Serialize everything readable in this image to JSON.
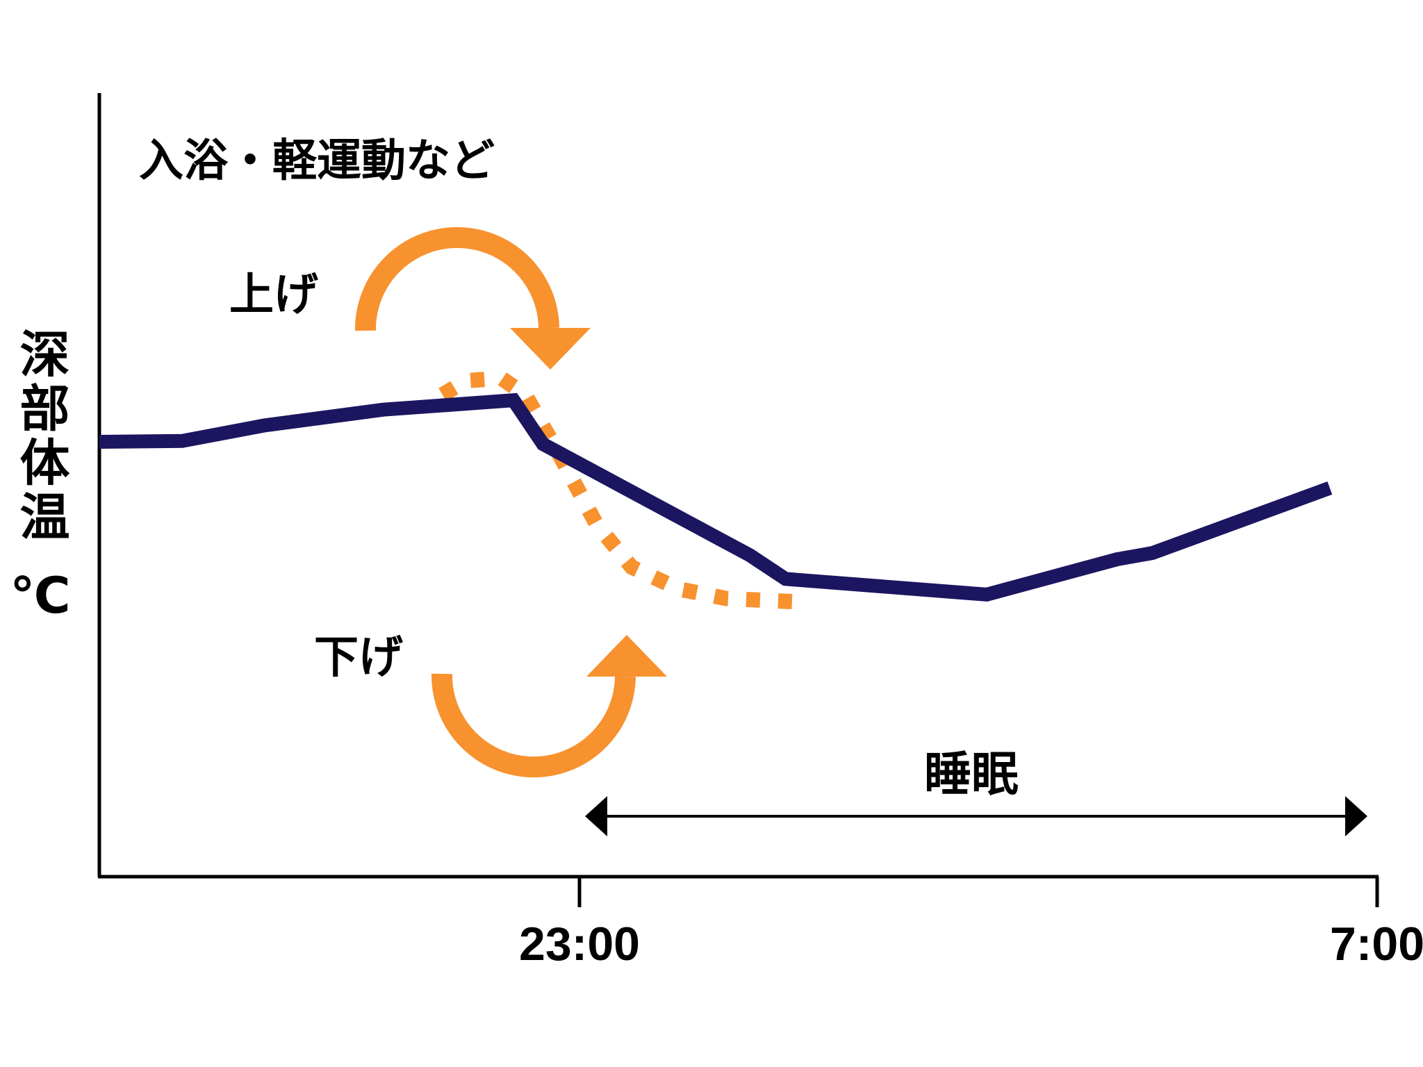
{
  "chart_data": {
    "type": "line",
    "ylabel": "深部体温 ℃",
    "xlabel": "",
    "x_ticks": [
      "23:00",
      "7:00"
    ],
    "grid": false,
    "annotations": {
      "activity": "入浴・軽運動など",
      "raise": "上げ",
      "lower": "下げ",
      "sleep": "睡眠"
    },
    "y_units": "relative",
    "ylim": [
      0,
      100
    ],
    "xlim": [
      20.5,
      31.3
    ],
    "series": [
      {
        "color": "#1c1660",
        "style": "solid",
        "points": [
          [
            20.5,
            55.5
          ],
          [
            21.2,
            55.6
          ],
          [
            21.9,
            57.6
          ],
          [
            22.9,
            59.6
          ],
          [
            24.0,
            60.8
          ],
          [
            24.25,
            55.2
          ],
          [
            26.0,
            41.0
          ],
          [
            26.3,
            38.0
          ],
          [
            28.0,
            36.0
          ],
          [
            29.1,
            40.5
          ],
          [
            29.4,
            41.3
          ],
          [
            30.9,
            49.6
          ]
        ]
      },
      {
        "color": "#f7922f",
        "style": "dotted",
        "points": [
          [
            23.4,
            61.5
          ],
          [
            23.6,
            63.3
          ],
          [
            23.9,
            63.6
          ],
          [
            24.1,
            61.5
          ],
          [
            24.4,
            53.5
          ],
          [
            24.7,
            45.0
          ],
          [
            25.0,
            39.5
          ],
          [
            25.4,
            36.7
          ],
          [
            25.8,
            35.5
          ],
          [
            26.5,
            35.0
          ]
        ]
      }
    ],
    "colors": {
      "axis": "#000000",
      "main_line": "#1c1660",
      "accent": "#f7922f"
    }
  }
}
